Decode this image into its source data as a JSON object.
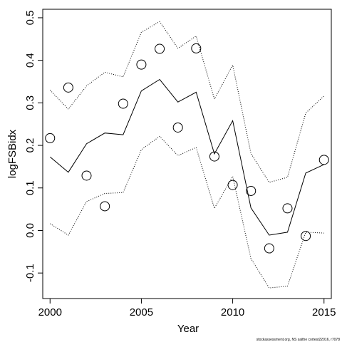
{
  "chart_data": {
    "type": "line",
    "title": "",
    "xlabel": "Year",
    "ylabel": "logFSBidx",
    "xlim": [
      1999.6,
      2015.4
    ],
    "ylim": [
      -0.16,
      0.52
    ],
    "x_ticks": [
      2000,
      2005,
      2010,
      2015
    ],
    "x_tick_labels": [
      "2000",
      "2005",
      "2010",
      "2015"
    ],
    "y_ticks": [
      -0.1,
      0.0,
      0.1,
      0.2,
      0.3,
      0.4,
      0.5
    ],
    "y_tick_labels": [
      "-0.1",
      "0.0",
      "0.1",
      "0.2",
      "0.3",
      "0.4",
      "0.5"
    ],
    "grid": false,
    "x": [
      2000,
      2001,
      2002,
      2003,
      2004,
      2005,
      2006,
      2007,
      2008,
      2009,
      2010,
      2011,
      2012,
      2013,
      2014,
      2015
    ],
    "series": [
      {
        "style": "circles",
        "values": [
          0.217,
          0.336,
          0.129,
          0.057,
          0.298,
          0.39,
          0.427,
          0.242,
          0.428,
          0.174,
          0.107,
          0.093,
          -0.042,
          0.052,
          -0.013,
          0.166
        ]
      },
      {
        "style": "solid-line",
        "values": [
          0.173,
          0.137,
          0.204,
          0.229,
          0.225,
          0.328,
          0.355,
          0.302,
          0.325,
          0.18,
          0.258,
          0.053,
          -0.011,
          -0.004,
          0.135,
          0.155
        ]
      },
      {
        "style": "dotted-line",
        "values": [
          0.33,
          0.285,
          0.34,
          0.372,
          0.361,
          0.466,
          0.491,
          0.428,
          0.457,
          0.309,
          0.389,
          0.181,
          0.113,
          0.125,
          0.276,
          0.316
        ]
      },
      {
        "style": "dotted-line",
        "values": [
          0.016,
          -0.011,
          0.068,
          0.087,
          0.089,
          0.19,
          0.221,
          0.176,
          0.195,
          0.052,
          0.127,
          -0.066,
          -0.135,
          -0.131,
          -0.004,
          -0.006
        ]
      }
    ]
  },
  "footer": {
    "credit": "stockassessment.org, NS saithe  cortest22016, r7078"
  }
}
